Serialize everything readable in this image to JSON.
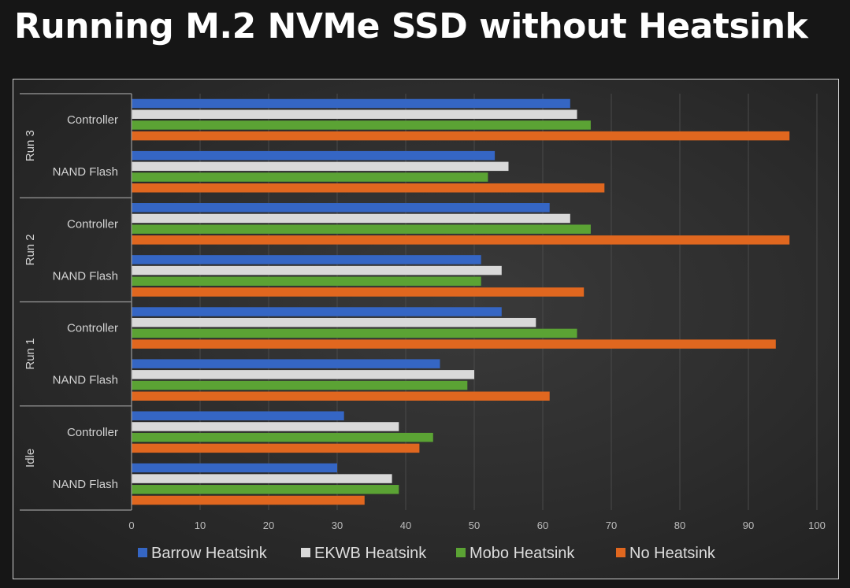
{
  "page": {
    "title": "Running M.2 NVMe SSD without Heatsink"
  },
  "chart_data": {
    "type": "bar",
    "orientation": "horizontal",
    "title": "",
    "xlabel": "",
    "ylabel": "",
    "xlim": [
      0,
      100
    ],
    "x_ticks": [
      0,
      10,
      20,
      30,
      40,
      50,
      60,
      70,
      80,
      90,
      100
    ],
    "grid": true,
    "legend_position": "bottom",
    "groups": [
      {
        "label": "Run 3",
        "categories": [
          "Controller",
          "NAND Flash"
        ]
      },
      {
        "label": "Run 2",
        "categories": [
          "Controller",
          "NAND Flash"
        ]
      },
      {
        "label": "Run 1",
        "categories": [
          "Controller",
          "NAND Flash"
        ]
      },
      {
        "label": "Idle",
        "categories": [
          "Controller",
          "NAND Flash"
        ]
      }
    ],
    "categories": [
      "Run 3 Controller",
      "Run 3 NAND Flash",
      "Run 2 Controller",
      "Run 2 NAND Flash",
      "Run 1 Controller",
      "Run 1 NAND Flash",
      "Idle Controller",
      "Idle NAND Flash"
    ],
    "series": [
      {
        "name": "Barrow Heatsink",
        "color": "#3566c4",
        "values": [
          64,
          53,
          61,
          51,
          54,
          45,
          31,
          30
        ]
      },
      {
        "name": "EKWB Heatsink",
        "color": "#d9d9d9",
        "values": [
          65,
          55,
          64,
          54,
          59,
          50,
          39,
          38
        ]
      },
      {
        "name": "Mobo Heatsink",
        "color": "#5ba334",
        "values": [
          67,
          52,
          67,
          51,
          65,
          49,
          44,
          39
        ]
      },
      {
        "name": "No Heatsink",
        "color": "#e0671f",
        "values": [
          96,
          69,
          96,
          66,
          94,
          61,
          42,
          34
        ]
      }
    ]
  }
}
